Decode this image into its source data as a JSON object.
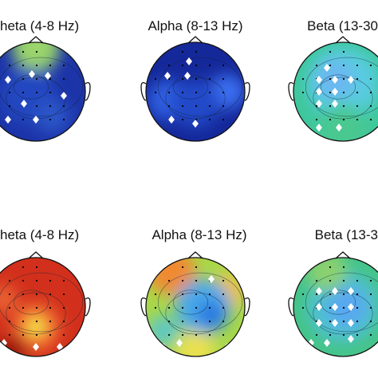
{
  "panels": [
    {
      "title": "heta (4-8 Hz)"
    },
    {
      "title": "Alpha (8-13 Hz)"
    },
    {
      "title": "Beta (13-30"
    },
    {
      "title": "heta (4-8 Hz)"
    },
    {
      "title": "Alpha (8-13 Hz)"
    },
    {
      "title": "Beta (13-3"
    }
  ]
}
